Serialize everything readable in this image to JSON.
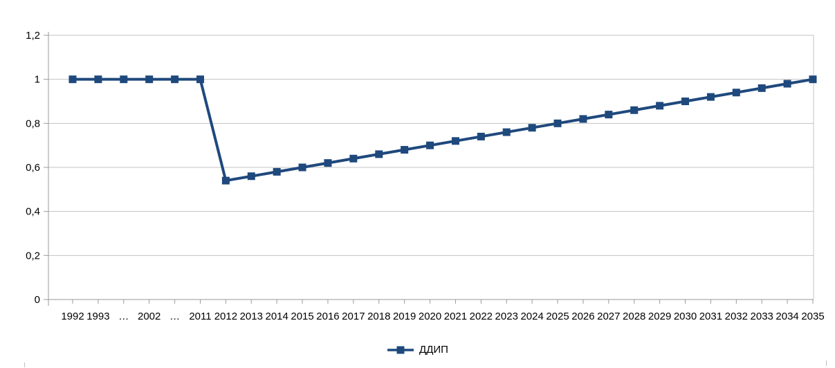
{
  "chart_data": {
    "type": "line",
    "title": "",
    "xlabel": "",
    "ylabel": "",
    "categories": [
      "1992",
      "1993",
      "…",
      "2002",
      "…",
      "2011",
      "2012",
      "2013",
      "2014",
      "2015",
      "2016",
      "2017",
      "2018",
      "2019",
      "2020",
      "2021",
      "2022",
      "2023",
      "2024",
      "2025",
      "2026",
      "2027",
      "2028",
      "2029",
      "2030",
      "2031",
      "2032",
      "2033",
      "2034",
      "2035"
    ],
    "series": [
      {
        "name": "ДДИП",
        "color": "#1F497D",
        "marker": "square",
        "values": [
          1,
          1,
          1,
          1,
          1,
          1,
          0.54,
          0.56,
          0.58,
          0.6,
          0.62,
          0.64,
          0.66,
          0.68,
          0.7,
          0.72,
          0.74,
          0.76,
          0.78,
          0.8,
          0.82,
          0.84,
          0.86,
          0.88,
          0.9,
          0.92,
          0.94,
          0.96,
          0.98,
          1
        ]
      }
    ],
    "ylim": [
      0,
      1.2
    ],
    "yticks": [
      {
        "value": 0,
        "label": "0"
      },
      {
        "value": 0.2,
        "label": "0,2"
      },
      {
        "value": 0.4,
        "label": "0,4"
      },
      {
        "value": 0.6,
        "label": "0,6"
      },
      {
        "value": 0.8,
        "label": "0,8"
      },
      {
        "value": 1,
        "label": "1"
      },
      {
        "value": 1.2,
        "label": "1,2"
      }
    ],
    "grid": "horizontal",
    "legend_position": "bottom"
  },
  "colors": {
    "series": "#1F497D",
    "gridline": "#C3C3C3",
    "axis": "#999999",
    "tick_label": "#000000",
    "background": "#FFFFFF"
  }
}
